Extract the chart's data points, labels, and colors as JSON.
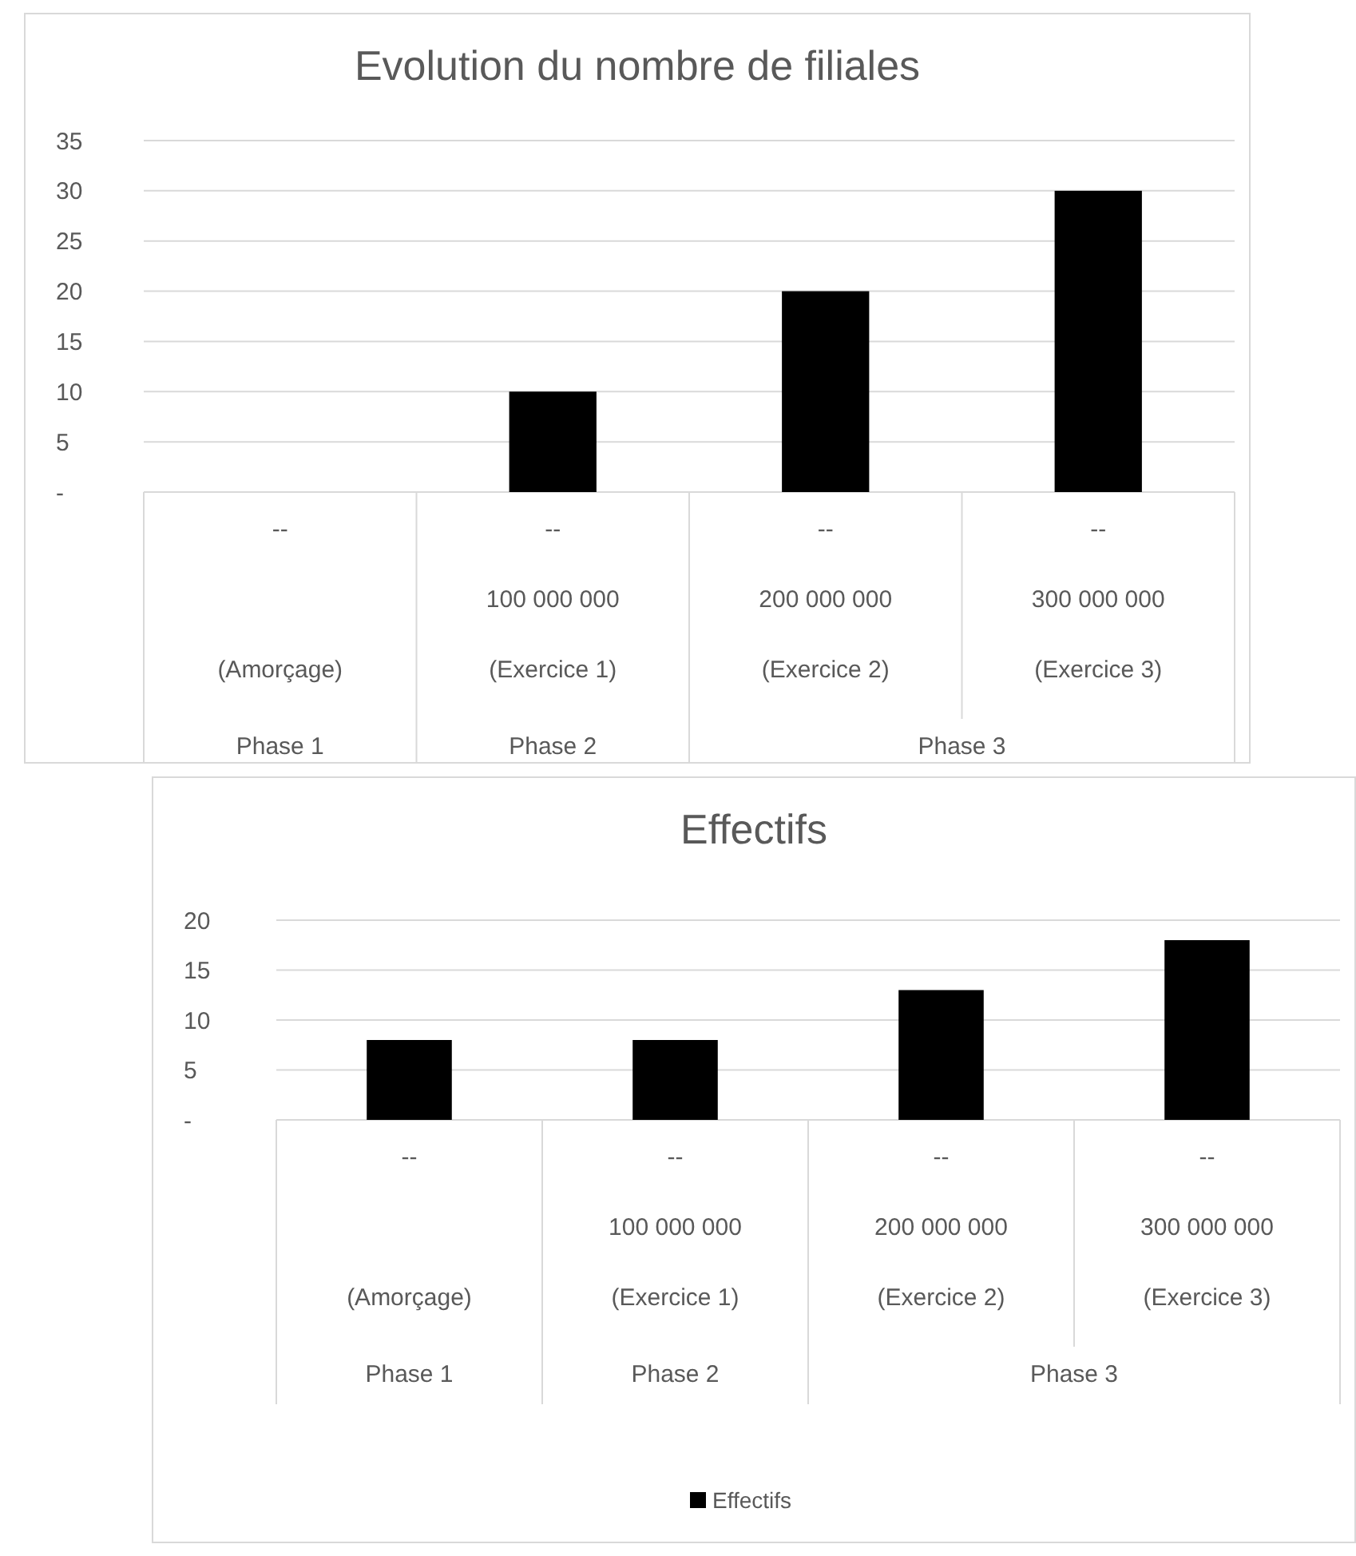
{
  "chart_data": [
    {
      "type": "bar",
      "title": "Evolution du nombre de filiales",
      "categories": [
        "--\n\n(Amorçage)",
        "--\n100 000 000\n(Exercice 1)",
        "--\n200 000 000\n(Exercice 2)",
        "--\n300 000 000\n(Exercice 3)"
      ],
      "series": [
        {
          "color": "#000000",
          "values": [
            0,
            10,
            20,
            30
          ]
        }
      ],
      "ylim": [
        0,
        35
      ],
      "yticks": [
        {
          "value": 0,
          "label": "-"
        },
        5,
        10,
        15,
        20,
        25,
        30,
        35
      ],
      "grid": "y",
      "annotations": [
        "Phase 1",
        "Phase 2",
        "Phase 3"
      ]
    },
    {
      "type": "bar",
      "title": "Effectifs",
      "categories": [
        "--\n\n(Amorçage)",
        "--\n100 000 000\n(Exercice 1)",
        "--\n200 000 000\n(Exercice 2)",
        "--\n300 000 000\n(Exercice 3)"
      ],
      "series": [
        {
          "name": "Effectifs",
          "color": "#000000",
          "values": [
            8,
            8,
            13,
            18
          ]
        }
      ],
      "ylim": [
        0,
        20
      ],
      "yticks": [
        {
          "value": 0,
          "label": "-"
        },
        5,
        10,
        15,
        20
      ],
      "grid": "y",
      "legend": "bottom",
      "annotations": [
        "Phase 1",
        "Phase 2",
        "Phase 3"
      ]
    }
  ]
}
